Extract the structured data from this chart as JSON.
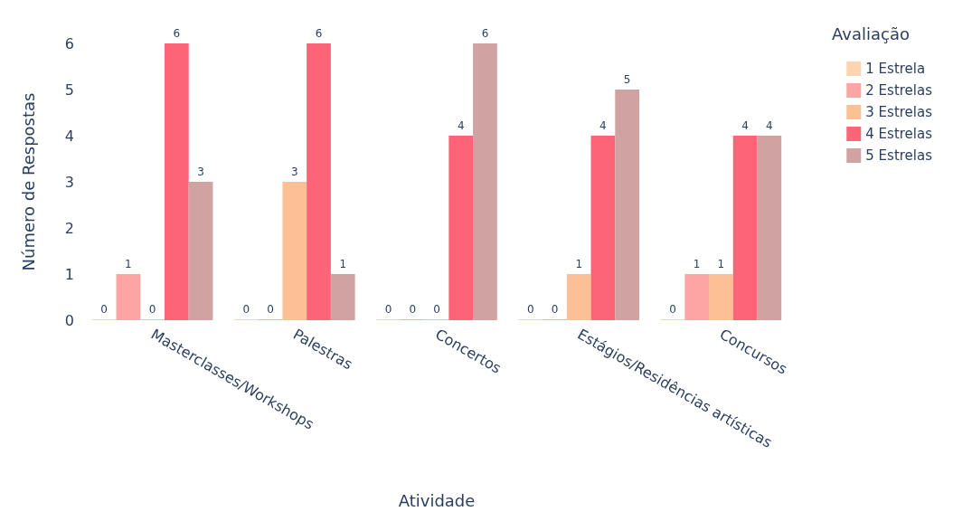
{
  "chart_data": {
    "type": "bar",
    "xlabel": "Atividade",
    "ylabel": "Número de Respostas",
    "legend_title": "Avaliação",
    "categories": [
      "Masterclasses/Workshops",
      "Palestras",
      "Concertos",
      "Estágios/Residências artísticas",
      "Concursos"
    ],
    "series": [
      {
        "name": "1 Estrela",
        "color": "#fcd5b0",
        "values": [
          0,
          0,
          0,
          0,
          0
        ]
      },
      {
        "name": "2 Estrelas",
        "color": "#fda5a5",
        "values": [
          1,
          0,
          0,
          0,
          1
        ]
      },
      {
        "name": "3 Estrelas",
        "color": "#fdbf94",
        "values": [
          0,
          3,
          0,
          1,
          1
        ]
      },
      {
        "name": "4 Estrelas",
        "color": "#fd6478",
        "values": [
          6,
          6,
          4,
          4,
          4
        ]
      },
      {
        "name": "5 Estrelas",
        "color": "#d0a2a2",
        "values": [
          3,
          1,
          6,
          5,
          4
        ]
      }
    ],
    "ylim": [
      0,
      6
    ],
    "yticks": [
      0,
      1,
      2,
      3,
      4,
      5,
      6
    ],
    "grid": false,
    "legend": "top right",
    "data_labels": true
  }
}
